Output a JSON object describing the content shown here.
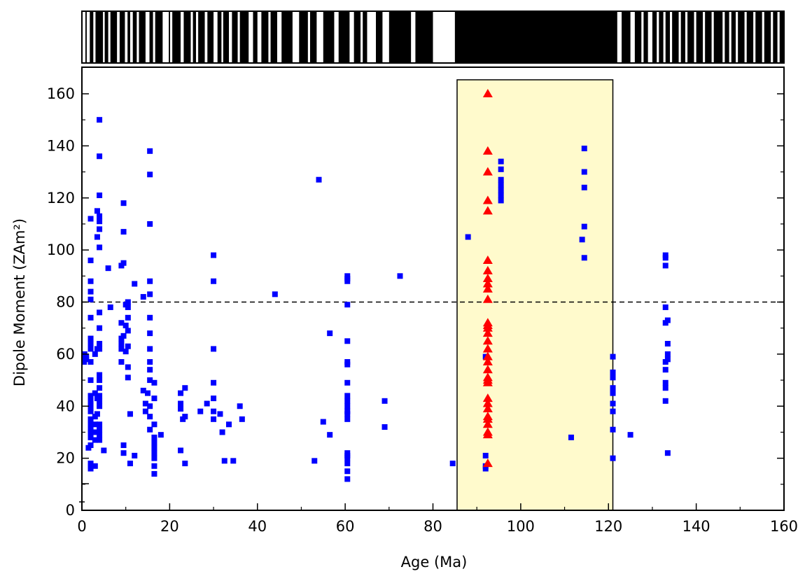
{
  "chart_data": {
    "type": "scatter",
    "xlabel": "Age (Ma)",
    "ylabel": "Dipole Moment (ZAm²)",
    "xlim": [
      0,
      160
    ],
    "ylim": [
      0,
      170
    ],
    "x_ticks": [
      0,
      20,
      40,
      60,
      80,
      100,
      120,
      140,
      160
    ],
    "y_ticks": [
      0,
      20,
      40,
      60,
      80,
      100,
      120,
      140,
      160
    ],
    "grid": false,
    "reference_line": {
      "y": 80,
      "style": "dashed"
    },
    "highlight_band": {
      "x_range": [
        85.5,
        121
      ],
      "color": "#FFFACC"
    },
    "polarity_bar": {
      "description": "geomagnetic polarity timescale (black = normal, white = reversed)",
      "white_intervals": [
        [
          0,
          0.8
        ],
        [
          1.1,
          1.8
        ],
        [
          2.6,
          3.1
        ],
        [
          4.8,
          5.2
        ],
        [
          6.0,
          6.5
        ],
        [
          8.0,
          8.6
        ],
        [
          9.8,
          10.4
        ],
        [
          11.0,
          11.6
        ],
        [
          12.5,
          13.0
        ],
        [
          14.5,
          15.4
        ],
        [
          16.2,
          16.7
        ],
        [
          18.4,
          19.8
        ],
        [
          20.1,
          20.6
        ],
        [
          22.5,
          23.2
        ],
        [
          24.8,
          25.3
        ],
        [
          26.0,
          26.5
        ],
        [
          28.0,
          28.6
        ],
        [
          30.0,
          30.9
        ],
        [
          31.8,
          32.2
        ],
        [
          33.5,
          34.2
        ],
        [
          35.5,
          36.0
        ],
        [
          38.0,
          39.0
        ],
        [
          40.0,
          40.9
        ],
        [
          42.5,
          43.0
        ],
        [
          44.5,
          45.5
        ],
        [
          48.0,
          49.5
        ],
        [
          51.5,
          52.0
        ],
        [
          53.5,
          55.0
        ],
        [
          57.5,
          58.5
        ],
        [
          61.0,
          62.0
        ],
        [
          63.5,
          64.0
        ],
        [
          65.0,
          67.0
        ],
        [
          68.5,
          70.0
        ],
        [
          75.0,
          76.0
        ],
        [
          80.0,
          85.0
        ],
        [
          122.0,
          123.0
        ],
        [
          125.0,
          126.0
        ],
        [
          127.5,
          128.0
        ],
        [
          129.0,
          130.0
        ],
        [
          131.0,
          131.5
        ],
        [
          132.5,
          133.0
        ],
        [
          134.0,
          134.5
        ],
        [
          136.0,
          136.5
        ],
        [
          137.5,
          138.0
        ],
        [
          139.5,
          140.0
        ],
        [
          141.5,
          142.0
        ],
        [
          143.5,
          144.0
        ],
        [
          146.0,
          146.5
        ],
        [
          147.5,
          148.0
        ],
        [
          149.0,
          149.5
        ],
        [
          151.0,
          151.5
        ],
        [
          153.0,
          153.5
        ],
        [
          155.0,
          155.5
        ],
        [
          157.0,
          157.5
        ],
        [
          158.5,
          159.0
        ]
      ]
    },
    "series": [
      {
        "marker": "square",
        "color": "#0000FF",
        "points": [
          [
            0.5,
            57
          ],
          [
            0.5,
            58
          ],
          [
            0.6,
            60
          ],
          [
            1,
            58
          ],
          [
            1,
            59
          ],
          [
            1.5,
            24
          ],
          [
            2,
            16
          ],
          [
            2,
            18
          ],
          [
            2,
            25
          ],
          [
            2,
            28
          ],
          [
            2,
            30
          ],
          [
            2,
            31
          ],
          [
            2,
            33
          ],
          [
            2,
            35
          ],
          [
            2,
            38
          ],
          [
            2,
            40
          ],
          [
            2,
            42
          ],
          [
            2,
            44
          ],
          [
            2,
            50
          ],
          [
            2,
            57
          ],
          [
            2,
            62
          ],
          [
            2,
            64
          ],
          [
            2,
            66
          ],
          [
            2,
            74
          ],
          [
            2,
            81
          ],
          [
            2,
            84
          ],
          [
            2,
            88
          ],
          [
            2,
            96
          ],
          [
            2,
            112
          ],
          [
            2,
            17
          ],
          [
            3,
            17
          ],
          [
            3,
            27
          ],
          [
            3,
            30
          ],
          [
            3,
            33
          ],
          [
            3,
            36
          ],
          [
            3,
            45
          ],
          [
            3,
            60
          ],
          [
            3.5,
            105
          ],
          [
            3.5,
            115
          ],
          [
            3.5,
            62
          ],
          [
            3.5,
            43
          ],
          [
            3.5,
            37
          ],
          [
            4,
            27
          ],
          [
            4,
            29
          ],
          [
            4,
            31
          ],
          [
            4,
            33
          ],
          [
            4,
            40
          ],
          [
            4,
            42
          ],
          [
            4,
            44
          ],
          [
            4,
            47
          ],
          [
            4,
            50
          ],
          [
            4,
            52
          ],
          [
            4,
            62
          ],
          [
            4,
            64
          ],
          [
            4,
            70
          ],
          [
            4,
            76
          ],
          [
            4,
            101
          ],
          [
            4,
            108
          ],
          [
            4,
            111
          ],
          [
            4,
            113
          ],
          [
            4,
            121
          ],
          [
            4,
            136
          ],
          [
            4,
            150
          ],
          [
            5,
            23
          ],
          [
            6,
            93
          ],
          [
            6.5,
            78
          ],
          [
            9,
            62
          ],
          [
            9,
            64
          ],
          [
            9,
            66
          ],
          [
            9,
            72
          ],
          [
            9,
            94
          ],
          [
            9,
            57
          ],
          [
            9.5,
            67
          ],
          [
            9.5,
            95
          ],
          [
            9.5,
            118
          ],
          [
            9.5,
            107
          ],
          [
            9.5,
            25
          ],
          [
            9.5,
            22
          ],
          [
            10,
            79
          ],
          [
            10,
            61
          ],
          [
            10,
            71
          ],
          [
            10.5,
            51
          ],
          [
            10.5,
            55
          ],
          [
            10.5,
            63
          ],
          [
            10.5,
            69
          ],
          [
            10.5,
            74
          ],
          [
            10.5,
            78
          ],
          [
            10.5,
            80
          ],
          [
            11,
            37
          ],
          [
            11,
            18
          ],
          [
            12,
            21
          ],
          [
            12,
            87
          ],
          [
            14,
            82
          ],
          [
            14,
            46
          ],
          [
            14.5,
            41
          ],
          [
            14.5,
            38
          ],
          [
            15,
            45
          ],
          [
            15.5,
            31
          ],
          [
            15.5,
            36
          ],
          [
            15.5,
            40
          ],
          [
            15.5,
            50
          ],
          [
            15.5,
            54
          ],
          [
            15.5,
            57
          ],
          [
            15.5,
            62
          ],
          [
            15.5,
            68
          ],
          [
            15.5,
            74
          ],
          [
            15.5,
            83
          ],
          [
            15.5,
            88
          ],
          [
            15.5,
            110
          ],
          [
            15.5,
            129
          ],
          [
            15.5,
            138
          ],
          [
            16.5,
            14
          ],
          [
            16.5,
            17
          ],
          [
            16.5,
            20
          ],
          [
            16.5,
            22
          ],
          [
            16.5,
            24
          ],
          [
            16.5,
            26
          ],
          [
            16.5,
            28
          ],
          [
            16.5,
            33
          ],
          [
            16.5,
            43
          ],
          [
            16.5,
            49
          ],
          [
            18,
            29
          ],
          [
            22.5,
            23
          ],
          [
            22.5,
            39
          ],
          [
            22.5,
            41
          ],
          [
            22.5,
            45
          ],
          [
            23,
            35
          ],
          [
            23.5,
            36
          ],
          [
            23.5,
            47
          ],
          [
            23.5,
            18
          ],
          [
            27,
            38
          ],
          [
            28.5,
            41
          ],
          [
            30,
            35
          ],
          [
            30,
            38
          ],
          [
            30,
            43
          ],
          [
            30,
            49
          ],
          [
            30,
            62
          ],
          [
            30,
            88
          ],
          [
            30,
            98
          ],
          [
            31.5,
            37
          ],
          [
            32,
            30
          ],
          [
            32.5,
            19
          ],
          [
            33.5,
            33
          ],
          [
            34.5,
            19
          ],
          [
            36,
            40
          ],
          [
            36.5,
            35
          ],
          [
            44,
            83
          ],
          [
            53,
            19
          ],
          [
            54,
            127
          ],
          [
            55,
            34
          ],
          [
            56.5,
            29
          ],
          [
            56.5,
            68
          ],
          [
            60.5,
            12
          ],
          [
            60.5,
            15
          ],
          [
            60.5,
            18
          ],
          [
            60.5,
            20
          ],
          [
            60.5,
            21
          ],
          [
            60.5,
            22
          ],
          [
            60.5,
            35
          ],
          [
            60.5,
            37
          ],
          [
            60.5,
            38
          ],
          [
            60.5,
            40
          ],
          [
            60.5,
            42
          ],
          [
            60.5,
            44
          ],
          [
            60.5,
            49
          ],
          [
            60.5,
            56
          ],
          [
            60.5,
            57
          ],
          [
            60.5,
            65
          ],
          [
            60.5,
            79
          ],
          [
            60.5,
            88
          ],
          [
            60.5,
            89
          ],
          [
            60.5,
            90
          ],
          [
            69,
            32
          ],
          [
            69,
            42
          ],
          [
            72.5,
            90
          ],
          [
            84.5,
            18
          ],
          [
            88,
            105
          ],
          [
            92,
            16
          ],
          [
            92,
            17
          ],
          [
            92,
            21
          ],
          [
            92,
            59
          ],
          [
            95.5,
            119
          ],
          [
            95.5,
            121
          ],
          [
            95.5,
            123
          ],
          [
            95.5,
            125
          ],
          [
            95.5,
            127
          ],
          [
            95.5,
            131
          ],
          [
            95.5,
            134
          ],
          [
            111.5,
            28
          ],
          [
            114,
            104
          ],
          [
            114.5,
            97
          ],
          [
            114.5,
            109
          ],
          [
            114.5,
            124
          ],
          [
            114.5,
            130
          ],
          [
            114.5,
            139
          ],
          [
            121,
            20
          ],
          [
            121,
            31
          ],
          [
            121,
            38
          ],
          [
            121,
            41
          ],
          [
            121,
            45
          ],
          [
            121,
            46
          ],
          [
            121,
            47
          ],
          [
            121,
            51
          ],
          [
            121,
            53
          ],
          [
            121,
            59
          ],
          [
            125,
            29
          ],
          [
            133,
            42
          ],
          [
            133,
            47
          ],
          [
            133,
            49
          ],
          [
            133,
            54
          ],
          [
            133,
            57
          ],
          [
            133,
            72
          ],
          [
            133,
            78
          ],
          [
            133,
            94
          ],
          [
            133,
            97
          ],
          [
            133,
            98
          ],
          [
            133.5,
            22
          ],
          [
            133.5,
            58
          ],
          [
            133.5,
            60
          ],
          [
            133.5,
            64
          ],
          [
            133.5,
            73
          ]
        ]
      },
      {
        "marker": "triangle",
        "color": "#FF0000",
        "points": [
          [
            92.5,
            18
          ],
          [
            92.5,
            29
          ],
          [
            92.5,
            30
          ],
          [
            92.5,
            33
          ],
          [
            92.5,
            35
          ],
          [
            92.5,
            36
          ],
          [
            92.5,
            39
          ],
          [
            92.5,
            41
          ],
          [
            92.5,
            43
          ],
          [
            92.5,
            49
          ],
          [
            92.5,
            50
          ],
          [
            92.5,
            51
          ],
          [
            92.5,
            54
          ],
          [
            92.5,
            57
          ],
          [
            92.5,
            59
          ],
          [
            92.5,
            62
          ],
          [
            92.5,
            65
          ],
          [
            92.5,
            68
          ],
          [
            92.5,
            70
          ],
          [
            92.5,
            71
          ],
          [
            92.5,
            72
          ],
          [
            92.5,
            81
          ],
          [
            92.5,
            85
          ],
          [
            92.5,
            87
          ],
          [
            92.5,
            89
          ],
          [
            92.5,
            92
          ],
          [
            92.5,
            96
          ],
          [
            92.5,
            115
          ],
          [
            92.5,
            119
          ],
          [
            92.5,
            130
          ],
          [
            92.5,
            138
          ],
          [
            92.5,
            160
          ]
        ]
      }
    ]
  }
}
